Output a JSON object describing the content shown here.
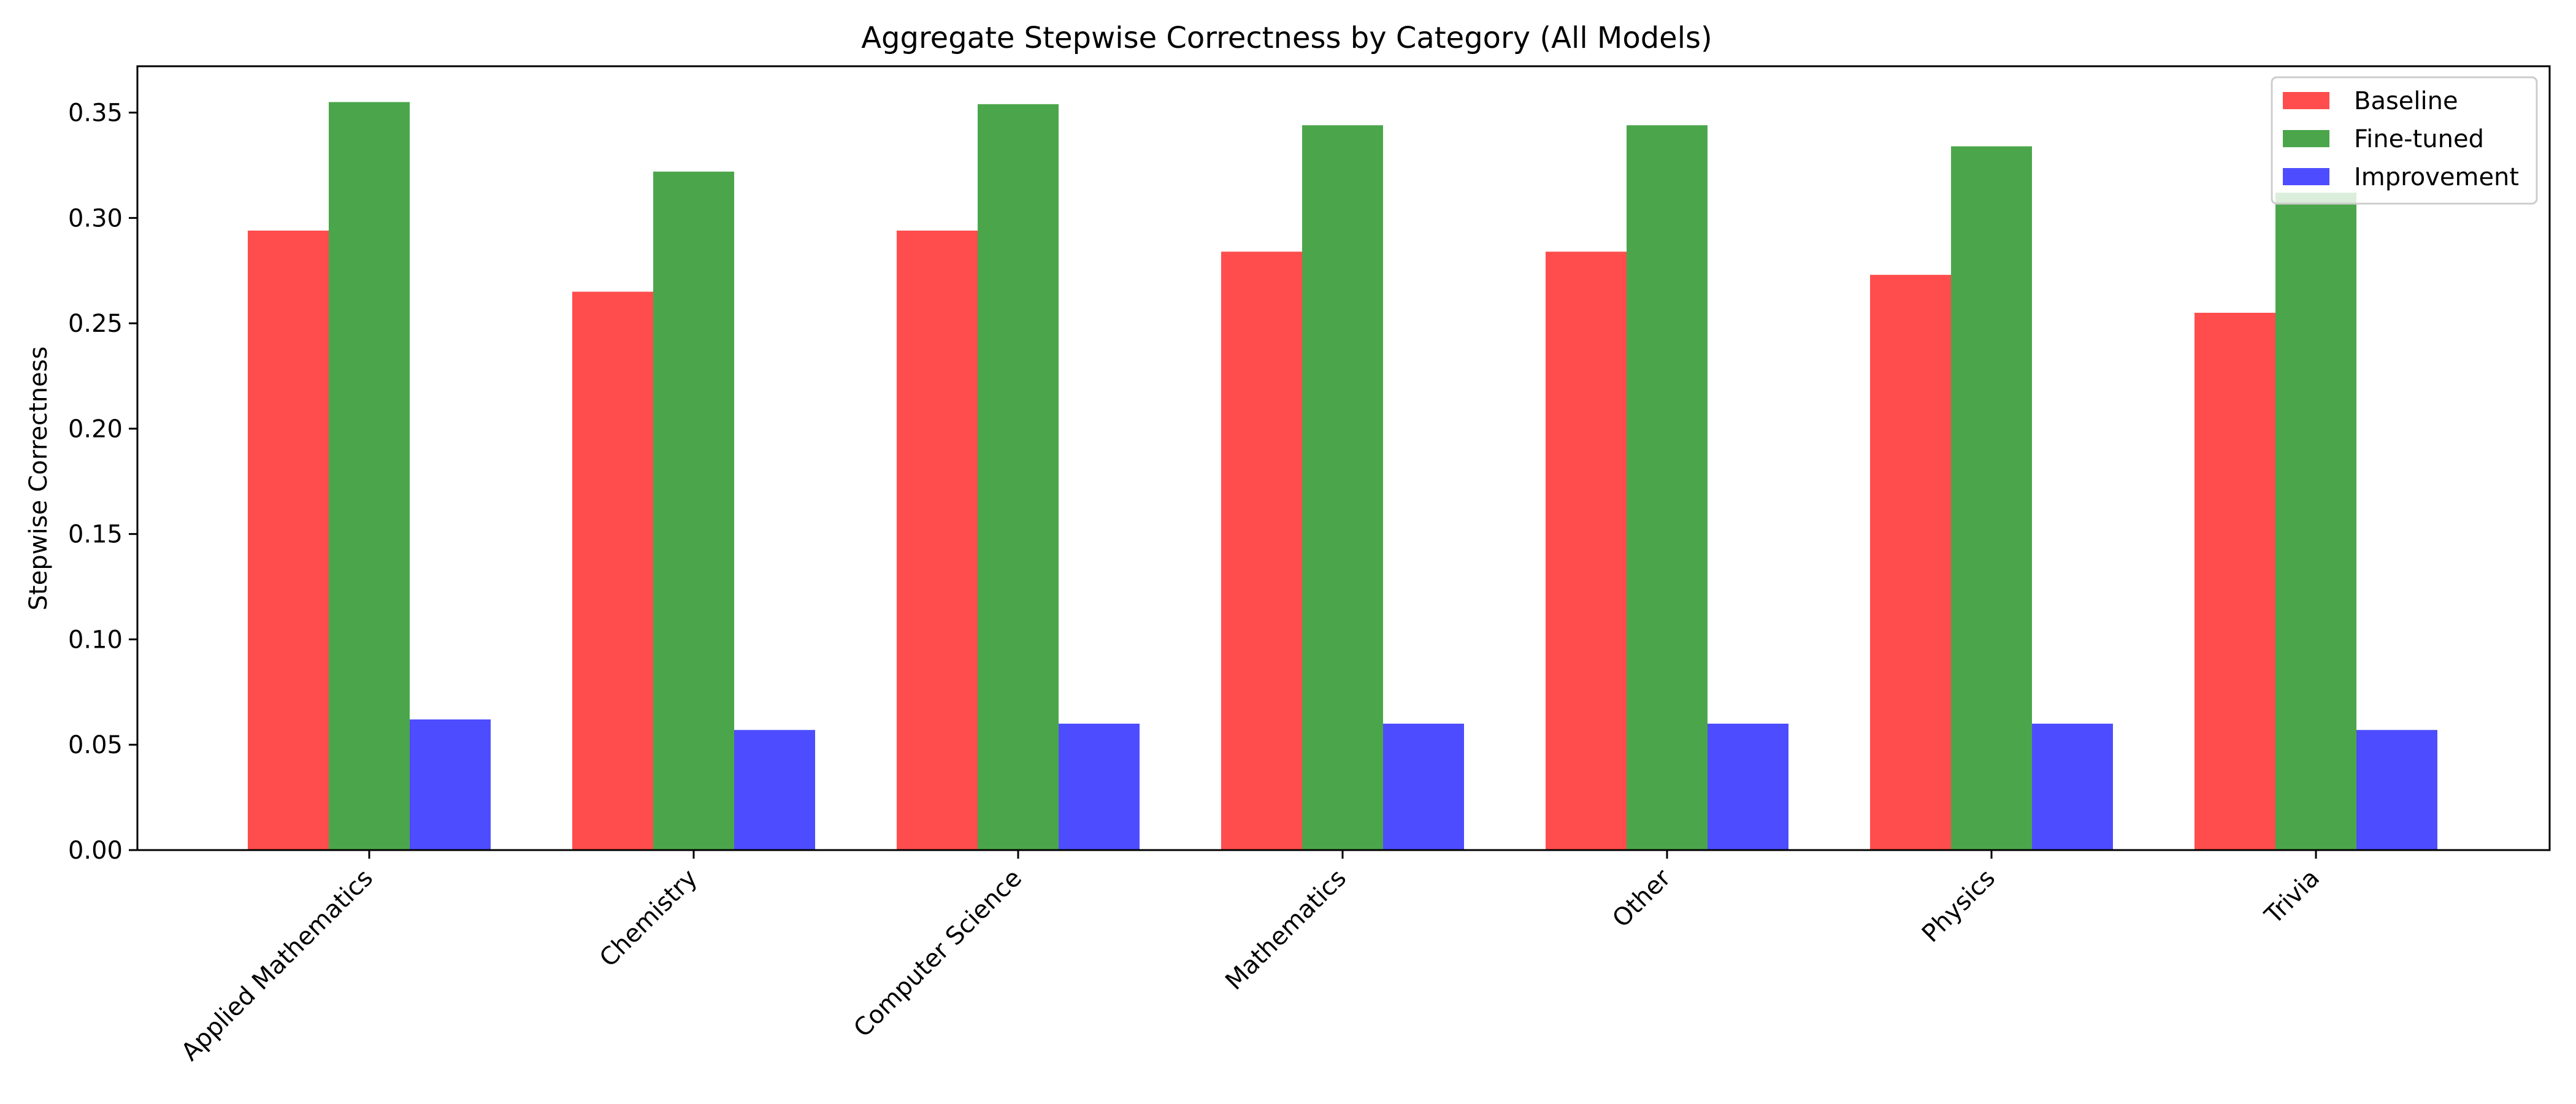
{
  "chart_data": {
    "type": "bar",
    "title": "Aggregate Stepwise Correctness by Category (All Models)",
    "xlabel": "",
    "ylabel": "Stepwise Correctness",
    "categories": [
      "Applied Mathematics",
      "Chemistry",
      "Computer Science",
      "Mathematics",
      "Other",
      "Physics",
      "Trivia"
    ],
    "series": [
      {
        "name": "Baseline",
        "color": "#ff4d4d",
        "values": [
          0.294,
          0.265,
          0.294,
          0.284,
          0.284,
          0.273,
          0.255
        ]
      },
      {
        "name": "Fine-tuned",
        "color": "#4ba64b",
        "values": [
          0.355,
          0.322,
          0.354,
          0.344,
          0.344,
          0.334,
          0.312
        ]
      },
      {
        "name": "Improvement",
        "color": "#4d4dff",
        "values": [
          0.062,
          0.057,
          0.06,
          0.06,
          0.06,
          0.06,
          0.057
        ]
      }
    ],
    "yticks": [
      "0.00",
      "0.05",
      "0.10",
      "0.15",
      "0.20",
      "0.25",
      "0.30",
      "0.35"
    ],
    "ylim": [
      0,
      0.372
    ],
    "grid": false,
    "legend_position": "top-right"
  }
}
